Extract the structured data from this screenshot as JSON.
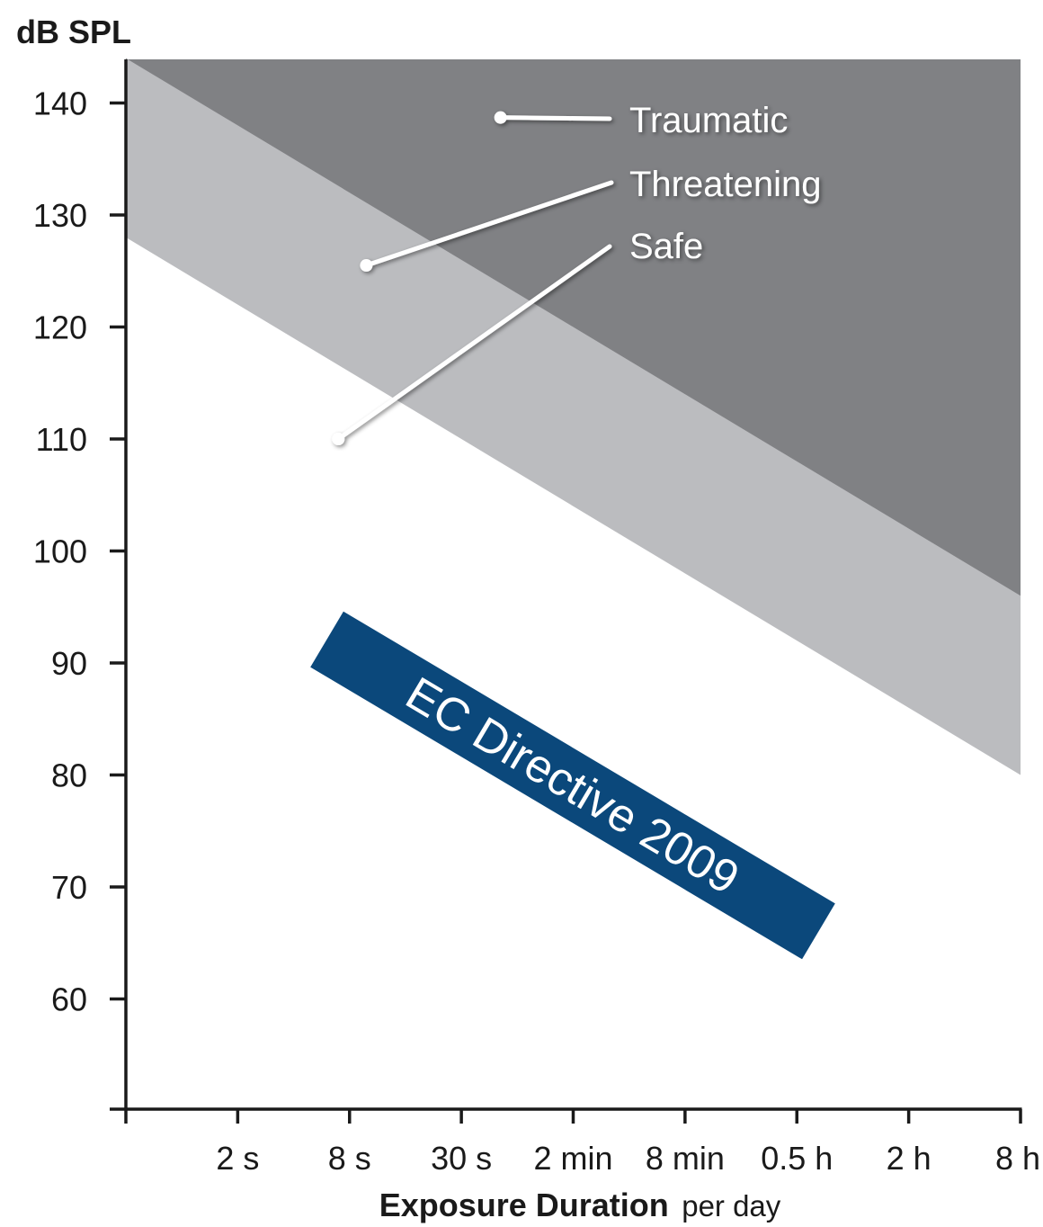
{
  "chart_data": {
    "type": "area",
    "ylabel": "dB SPL",
    "xlabel": "Exposure Duration",
    "xlabel_suffix": "per day",
    "x_ticks": [
      "2 s",
      "8 s",
      "30 s",
      "2 min",
      "8 min",
      "0.5 h",
      "2 h",
      "8 h"
    ],
    "y_ticks": [
      60,
      70,
      80,
      90,
      100,
      110,
      120,
      130,
      140
    ],
    "ylim": [
      50,
      145
    ],
    "x_range_index": [
      0,
      8
    ],
    "series": [
      {
        "name": "Threatening",
        "lower_boundary": [
          {
            "x_index": 0,
            "y": 128
          },
          {
            "x_index": 8,
            "y": 80
          }
        ],
        "color": "#bbbcbf"
      },
      {
        "name": "Traumatic",
        "lower_boundary": [
          {
            "x_index": 0,
            "y": 144
          },
          {
            "x_index": 8,
            "y": 96
          }
        ],
        "color": "#808184"
      }
    ],
    "legend": [
      {
        "label": "Traumatic",
        "marker_point": {
          "x_index": 3.35,
          "y": 138.7
        }
      },
      {
        "label": "Threatening",
        "marker_point": {
          "x_index": 2.15,
          "y": 125.5
        }
      },
      {
        "label": "Safe",
        "marker_point": {
          "x_index": 1.9,
          "y": 110
        }
      }
    ],
    "annotation": {
      "text": "EC Directive 2009",
      "color": "#0b487b"
    },
    "grid": false,
    "colors": {
      "axis": "#1a1a1a",
      "safe": "#ffffff",
      "threatening": "#bbbcbf",
      "traumatic": "#808184",
      "annotation": "#0b487b"
    }
  }
}
